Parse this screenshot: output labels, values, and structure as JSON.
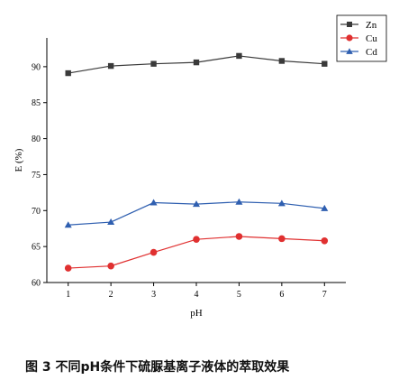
{
  "caption": "图 3  不同pH条件下硫脲基离子液体的萃取效果",
  "chart_data": {
    "type": "line",
    "xlabel": "pH",
    "ylabel": "E (%)",
    "x": [
      1,
      2,
      3,
      4,
      5,
      6,
      7
    ],
    "xticks": [
      "1",
      "2",
      "3",
      "4",
      "5",
      "6",
      "7"
    ],
    "xlim": [
      0.5,
      7.5
    ],
    "ylim": [
      60,
      94
    ],
    "yticks": [
      60,
      65,
      70,
      75,
      80,
      85,
      90
    ],
    "legend_position": "top-right",
    "series": [
      {
        "name": "Zn",
        "marker": "square",
        "color": "#3a3a3a",
        "values": [
          89.1,
          90.1,
          90.4,
          90.6,
          91.5,
          90.8,
          90.4
        ]
      },
      {
        "name": "Cu",
        "marker": "circle",
        "color": "#e03030",
        "values": [
          62.0,
          62.3,
          64.2,
          66.0,
          66.4,
          66.1,
          65.8
        ]
      },
      {
        "name": "Cd",
        "marker": "triangle",
        "color": "#2f5fb0",
        "values": [
          68.0,
          68.4,
          71.1,
          70.9,
          71.2,
          71.0,
          70.3
        ]
      }
    ]
  }
}
